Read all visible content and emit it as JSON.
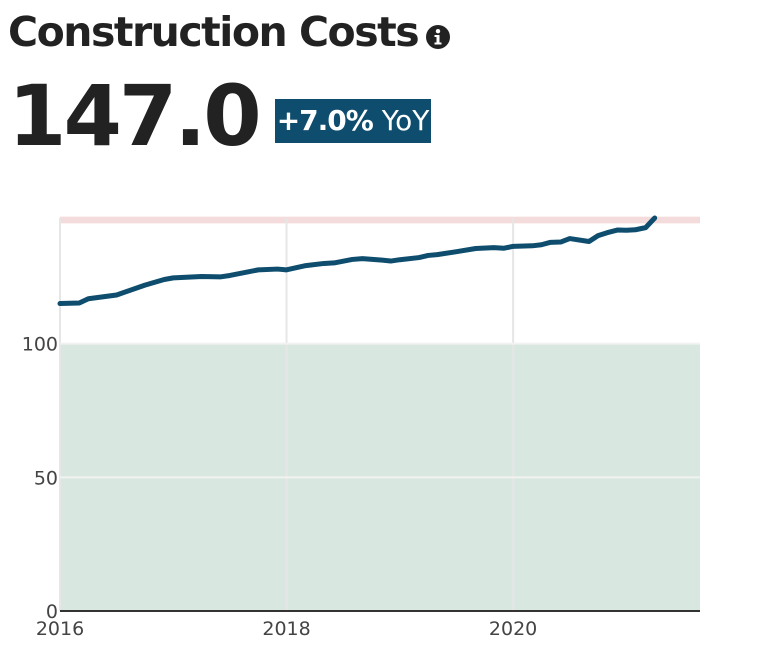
{
  "header": {
    "title": "Construction Costs",
    "info_icon": "info-circle-icon",
    "value": "147.0",
    "yoy_change": "+7.0%",
    "yoy_label": "YoY"
  },
  "colors": {
    "line": "#0e4d6e",
    "badge": "#0e4d6e",
    "lower_band": "#d8e8e0",
    "upper_band": "#f5dcdc",
    "grid": "#e6e6e6"
  },
  "chart_data": {
    "type": "line",
    "title": "Construction Costs",
    "xlabel": "",
    "ylabel": "",
    "xlim": [
      2016,
      2021.65
    ],
    "ylim": [
      0,
      147
    ],
    "x_ticks": [
      2016,
      2018,
      2020
    ],
    "y_ticks": [
      0,
      50,
      100
    ],
    "grid": true,
    "bands": [
      {
        "from": 0,
        "to": 100,
        "color": "#d8e8e0"
      },
      {
        "from": 145,
        "to": 147.5,
        "color": "#f5dcdc"
      }
    ],
    "series": [
      {
        "x": [
          2016.0,
          2016.17,
          2016.25,
          2016.5,
          2016.75,
          2016.92,
          2017.0,
          2017.25,
          2017.42,
          2017.5,
          2017.75,
          2017.92,
          2018.0,
          2018.17,
          2018.33,
          2018.42,
          2018.58,
          2018.67,
          2018.83,
          2018.92,
          2019.0,
          2019.17,
          2019.25,
          2019.33,
          2019.5,
          2019.67,
          2019.83,
          2019.92,
          2020.0,
          2020.17,
          2020.25,
          2020.33,
          2020.42,
          2020.5,
          2020.67,
          2020.75,
          2020.83,
          2020.92,
          2021.0,
          2021.08,
          2021.17,
          2021.25
        ],
        "y": [
          115.0,
          115.2,
          116.8,
          118.2,
          121.9,
          124.0,
          124.6,
          125.1,
          125.0,
          125.5,
          127.6,
          127.9,
          127.6,
          129.2,
          130.0,
          130.2,
          131.5,
          131.8,
          131.3,
          130.9,
          131.4,
          132.2,
          133.0,
          133.3,
          134.4,
          135.6,
          135.9,
          135.7,
          136.4,
          136.6,
          137.0,
          137.9,
          138.0,
          139.3,
          138.2,
          140.4,
          141.5,
          142.5,
          142.4,
          142.6,
          143.4,
          147.0
        ]
      }
    ]
  }
}
